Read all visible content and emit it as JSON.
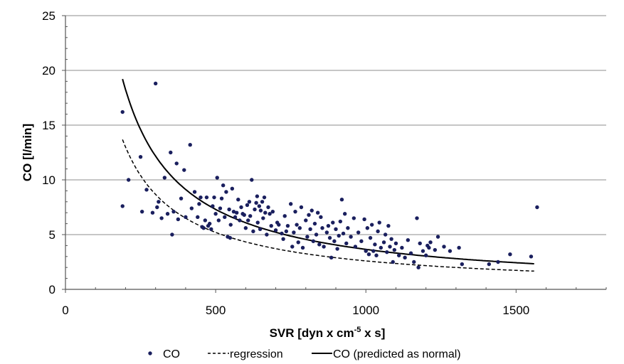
{
  "chart_data": {
    "type": "scatter",
    "xlabel": "SVR [dyn x cm",
    "xlabel_sup": "-5",
    "xlabel_tail": " x s]",
    "ylabel": "CO [l/min]",
    "xlim": [
      0,
      1800
    ],
    "ylim": [
      0,
      25
    ],
    "x_ticks": [
      0,
      500,
      1000,
      1500
    ],
    "y_ticks": [
      0,
      5,
      10,
      15,
      20,
      25
    ],
    "grid": "horizontal",
    "legend_position": "bottom",
    "legend": {
      "scatter": "CO",
      "regression": "regression",
      "predicted": "CO (predicted as normal)"
    },
    "colors": {
      "points": "#1a1f5e",
      "lines": "#000000",
      "grid": "#8c8c8c"
    },
    "series": [
      {
        "name": "CO",
        "type": "scatter",
        "points": [
          [
            190,
            16.2
          ],
          [
            190,
            7.6
          ],
          [
            210,
            10.0
          ],
          [
            250,
            12.1
          ],
          [
            255,
            7.1
          ],
          [
            270,
            9.1
          ],
          [
            290,
            7.0
          ],
          [
            300,
            18.8
          ],
          [
            305,
            7.5
          ],
          [
            310,
            8.0
          ],
          [
            320,
            6.5
          ],
          [
            330,
            10.2
          ],
          [
            340,
            6.9
          ],
          [
            350,
            12.5
          ],
          [
            355,
            5.0
          ],
          [
            360,
            7.1
          ],
          [
            370,
            11.5
          ],
          [
            375,
            6.4
          ],
          [
            385,
            8.3
          ],
          [
            395,
            10.9
          ],
          [
            400,
            6.6
          ],
          [
            415,
            13.2
          ],
          [
            420,
            7.4
          ],
          [
            430,
            8.9
          ],
          [
            440,
            6.6
          ],
          [
            445,
            7.8
          ],
          [
            450,
            8.4
          ],
          [
            455,
            5.7
          ],
          [
            460,
            5.6
          ],
          [
            465,
            6.3
          ],
          [
            470,
            8.4
          ],
          [
            475,
            5.8
          ],
          [
            480,
            6.0
          ],
          [
            485,
            5.5
          ],
          [
            490,
            7.6
          ],
          [
            495,
            8.4
          ],
          [
            500,
            6.9
          ],
          [
            505,
            10.2
          ],
          [
            510,
            6.3
          ],
          [
            515,
            7.4
          ],
          [
            520,
            8.3
          ],
          [
            525,
            9.5
          ],
          [
            530,
            6.6
          ],
          [
            535,
            8.9
          ],
          [
            540,
            4.8
          ],
          [
            545,
            7.3
          ],
          [
            548,
            4.7
          ],
          [
            550,
            5.9
          ],
          [
            555,
            9.2
          ],
          [
            560,
            7.1
          ],
          [
            565,
            6.6
          ],
          [
            570,
            7.0
          ],
          [
            575,
            8.2
          ],
          [
            580,
            6.3
          ],
          [
            585,
            7.5
          ],
          [
            590,
            6.9
          ],
          [
            595,
            6.8
          ],
          [
            600,
            5.6
          ],
          [
            605,
            7.7
          ],
          [
            608,
            6.3
          ],
          [
            612,
            8.0
          ],
          [
            615,
            6.7
          ],
          [
            620,
            10.0
          ],
          [
            625,
            5.3
          ],
          [
            630,
            7.3
          ],
          [
            635,
            7.9
          ],
          [
            638,
            8.5
          ],
          [
            640,
            6.1
          ],
          [
            645,
            7.6
          ],
          [
            648,
            5.5
          ],
          [
            650,
            7.2
          ],
          [
            655,
            8.0
          ],
          [
            658,
            6.5
          ],
          [
            662,
            8.4
          ],
          [
            665,
            7.0
          ],
          [
            670,
            5.0
          ],
          [
            675,
            7.5
          ],
          [
            680,
            6.9
          ],
          [
            685,
            5.8
          ],
          [
            690,
            7.1
          ],
          [
            700,
            5.4
          ],
          [
            705,
            6.1
          ],
          [
            710,
            5.9
          ],
          [
            720,
            5.1
          ],
          [
            725,
            4.6
          ],
          [
            730,
            6.7
          ],
          [
            735,
            5.3
          ],
          [
            740,
            5.8
          ],
          [
            750,
            7.8
          ],
          [
            755,
            3.9
          ],
          [
            760,
            5.2
          ],
          [
            765,
            7.1
          ],
          [
            770,
            5.9
          ],
          [
            775,
            4.3
          ],
          [
            780,
            5.6
          ],
          [
            785,
            7.5
          ],
          [
            790,
            3.8
          ],
          [
            800,
            6.3
          ],
          [
            805,
            4.8
          ],
          [
            810,
            6.8
          ],
          [
            815,
            5.5
          ],
          [
            820,
            7.2
          ],
          [
            825,
            4.4
          ],
          [
            830,
            6.0
          ],
          [
            835,
            5.0
          ],
          [
            840,
            7.0
          ],
          [
            845,
            4.1
          ],
          [
            850,
            6.6
          ],
          [
            855,
            5.6
          ],
          [
            860,
            3.9
          ],
          [
            870,
            5.2
          ],
          [
            875,
            5.8
          ],
          [
            880,
            4.7
          ],
          [
            885,
            2.9
          ],
          [
            890,
            6.1
          ],
          [
            895,
            4.4
          ],
          [
            900,
            5.5
          ],
          [
            905,
            3.7
          ],
          [
            910,
            4.9
          ],
          [
            915,
            6.2
          ],
          [
            920,
            8.2
          ],
          [
            925,
            5.1
          ],
          [
            930,
            6.9
          ],
          [
            935,
            4.2
          ],
          [
            940,
            5.6
          ],
          [
            950,
            4.8
          ],
          [
            960,
            6.5
          ],
          [
            965,
            3.9
          ],
          [
            975,
            5.2
          ],
          [
            985,
            4.4
          ],
          [
            995,
            6.4
          ],
          [
            1000,
            3.5
          ],
          [
            1005,
            5.6
          ],
          [
            1010,
            3.2
          ],
          [
            1015,
            4.7
          ],
          [
            1020,
            5.9
          ],
          [
            1025,
            3.5
          ],
          [
            1030,
            4.1
          ],
          [
            1035,
            3.1
          ],
          [
            1040,
            5.3
          ],
          [
            1045,
            6.1
          ],
          [
            1050,
            3.8
          ],
          [
            1060,
            4.3
          ],
          [
            1065,
            5.0
          ],
          [
            1070,
            3.4
          ],
          [
            1075,
            5.8
          ],
          [
            1080,
            3.9
          ],
          [
            1085,
            4.6
          ],
          [
            1090,
            2.5
          ],
          [
            1095,
            3.6
          ],
          [
            1100,
            4.2
          ],
          [
            1110,
            3.1
          ],
          [
            1120,
            3.8
          ],
          [
            1130,
            2.9
          ],
          [
            1140,
            4.5
          ],
          [
            1150,
            3.3
          ],
          [
            1160,
            2.5
          ],
          [
            1170,
            6.5
          ],
          [
            1175,
            2.0
          ],
          [
            1180,
            4.2
          ],
          [
            1190,
            3.5
          ],
          [
            1200,
            3.1
          ],
          [
            1205,
            4.0
          ],
          [
            1210,
            3.8
          ],
          [
            1215,
            4.3
          ],
          [
            1230,
            3.6
          ],
          [
            1240,
            4.8
          ],
          [
            1260,
            3.9
          ],
          [
            1280,
            3.5
          ],
          [
            1310,
            3.8
          ],
          [
            1320,
            2.3
          ],
          [
            1410,
            2.3
          ],
          [
            1440,
            2.5
          ],
          [
            1480,
            3.2
          ],
          [
            1550,
            3.0
          ],
          [
            1570,
            7.5
          ]
        ]
      },
      {
        "name": "regression",
        "type": "line",
        "style": "dashed",
        "formula": "y = 2600 / x",
        "x_range": [
          190,
          1560
        ]
      },
      {
        "name": "CO (predicted as normal)",
        "type": "line",
        "style": "solid",
        "formula": "y = 3650 / x",
        "x_range": [
          190,
          1560
        ]
      }
    ]
  }
}
